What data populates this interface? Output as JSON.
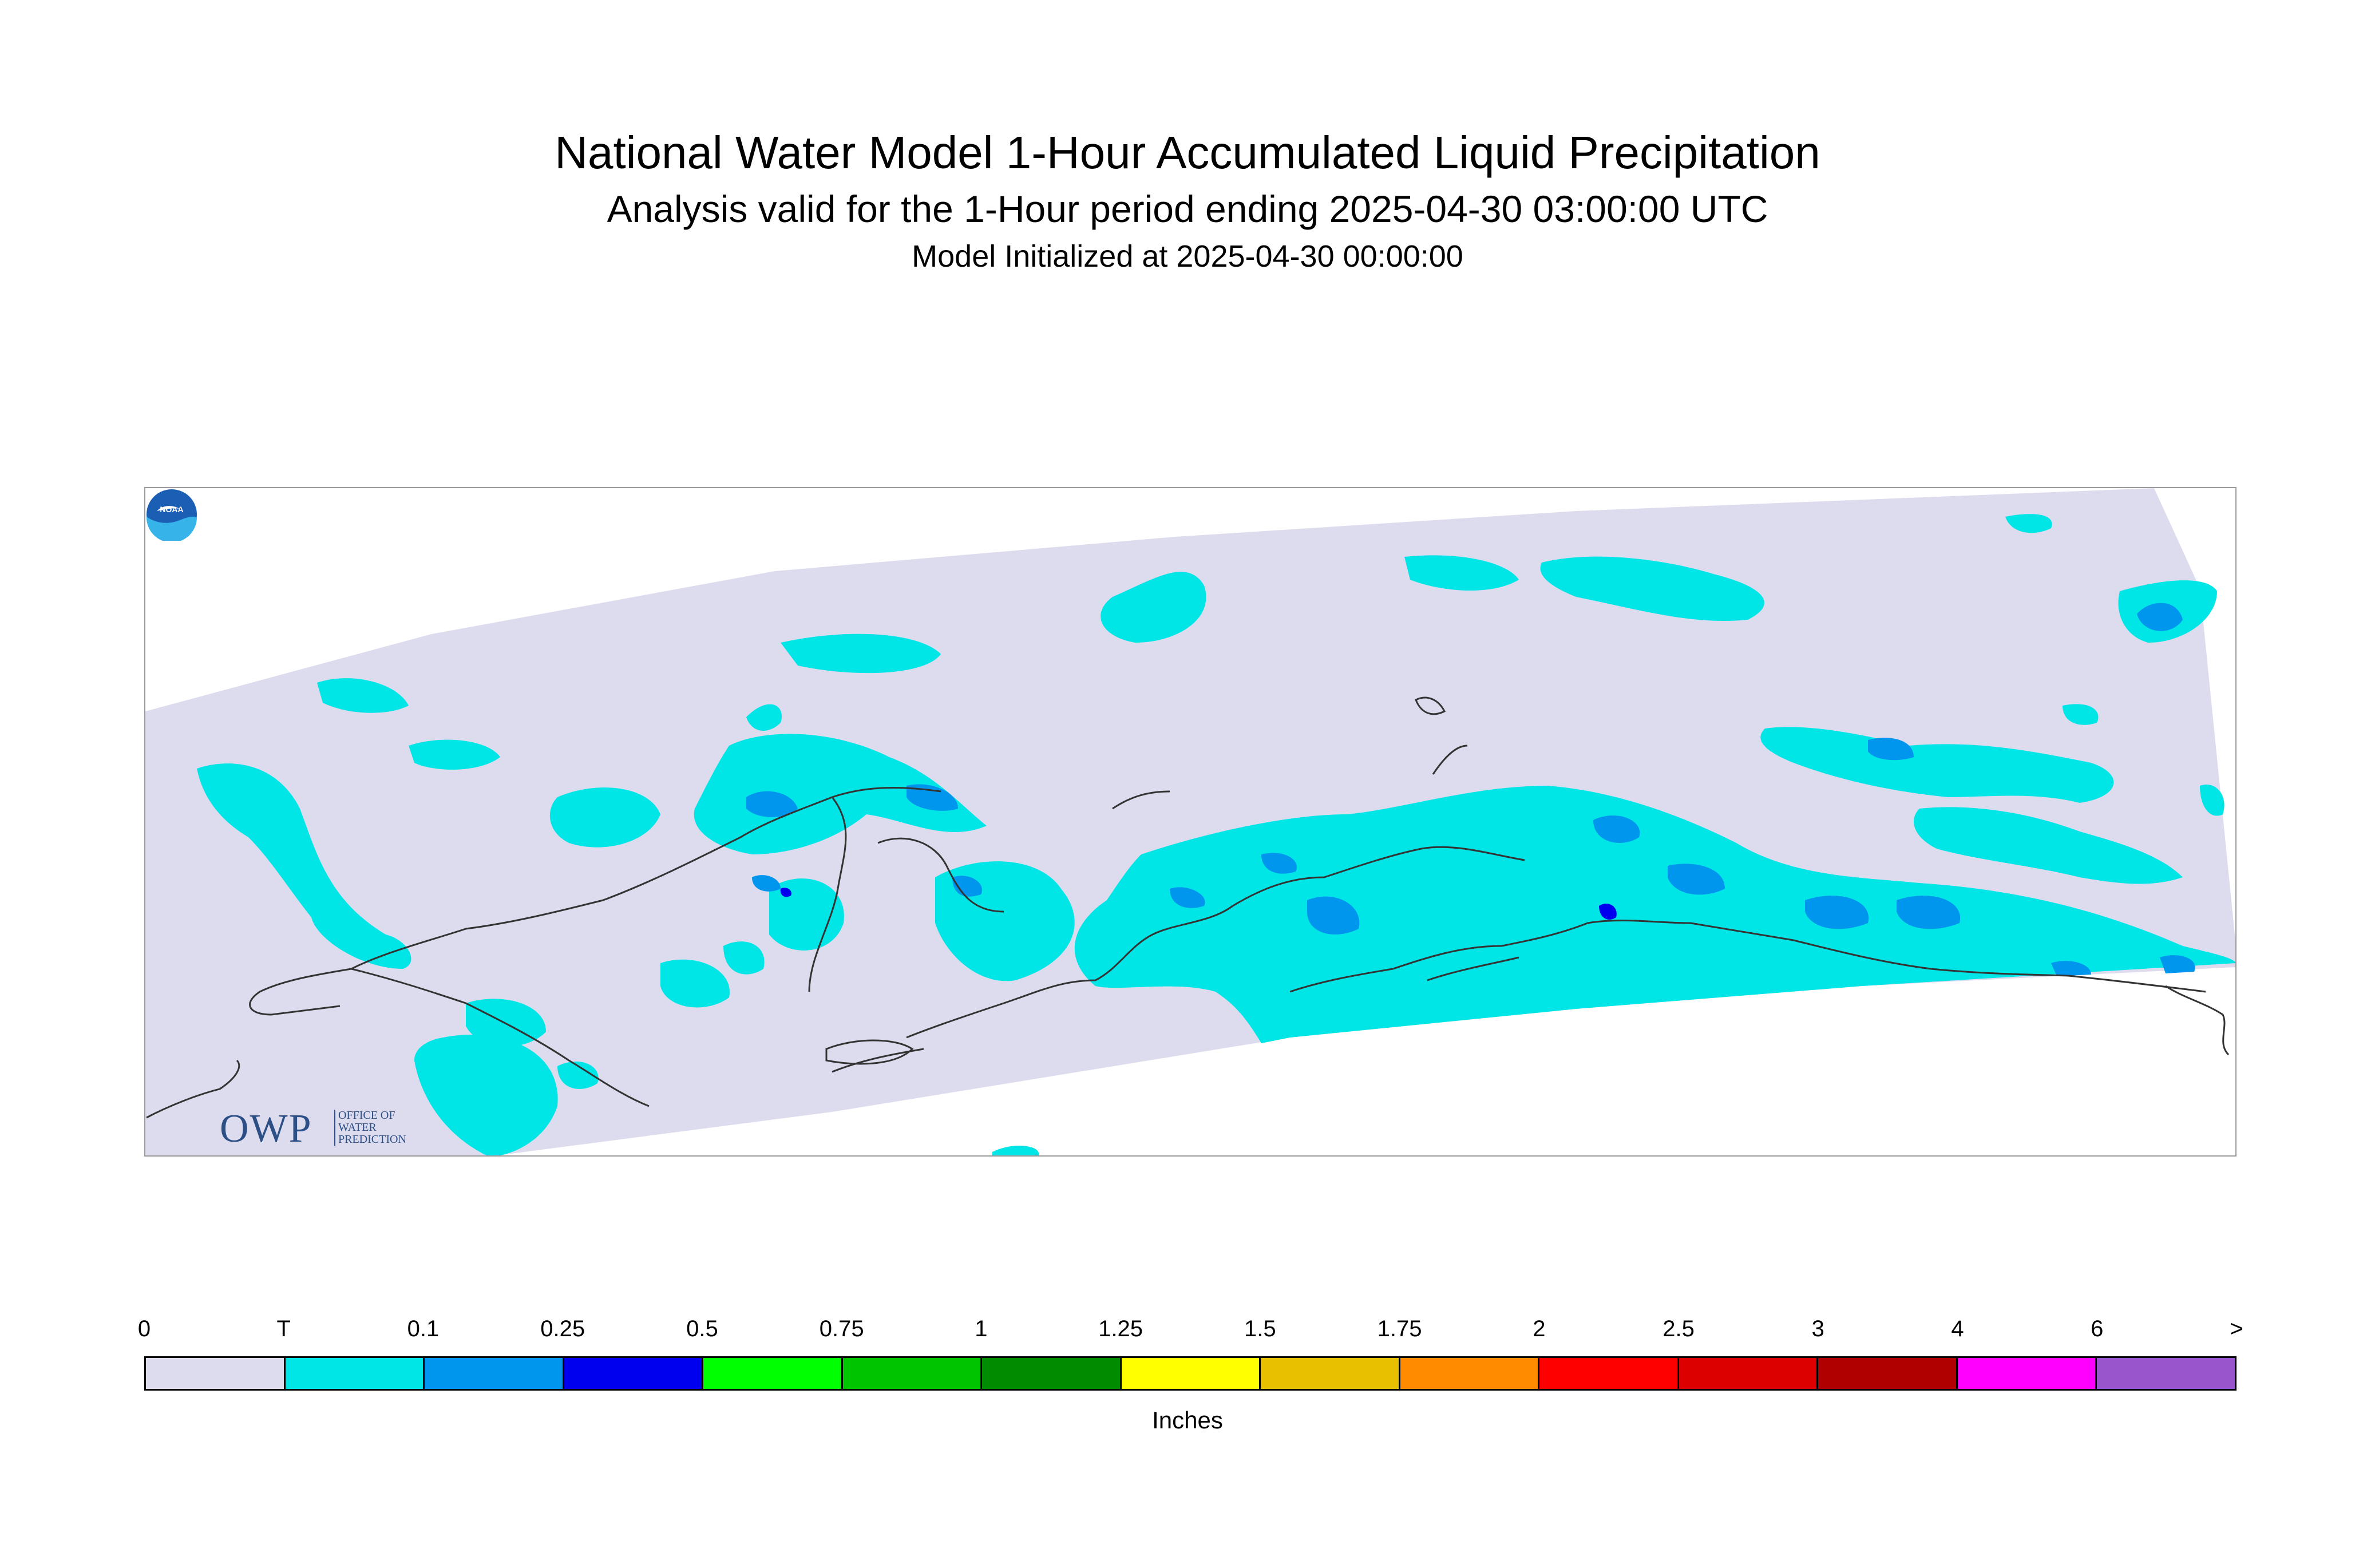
{
  "title": "National Water Model 1-Hour Accumulated Liquid Precipitation",
  "subtitle": "Analysis valid for the 1-Hour period ending 2025-04-30 03:00:00 UTC",
  "init_line": "Model Initialized at 2025-04-30 00:00:00",
  "logos": {
    "owp_main": "OWP",
    "owp_sub": [
      "OFFICE OF",
      "WATER",
      "PREDICTION"
    ],
    "noaa": "NOAA"
  },
  "colors": {
    "domain_zero": "#dcdcee",
    "trace": "#00e5e5",
    "p01": "#0096ee",
    "p025": "#0000ee",
    "coastline": "#333333"
  },
  "legend": {
    "units": "Inches",
    "tick_labels": [
      "0",
      "T",
      "0.1",
      "0.25",
      "0.5",
      "0.75",
      "1",
      "1.25",
      "1.5",
      "1.75",
      "2",
      "2.5",
      "3",
      "4",
      "6",
      ">"
    ],
    "bin_colors": [
      "#dcdcee",
      "#00e5e5",
      "#0096ee",
      "#0000ee",
      "#00ff00",
      "#00c400",
      "#008b00",
      "#ffff00",
      "#e8c000",
      "#ff8c00",
      "#ff0000",
      "#dd0000",
      "#b00000",
      "#ff00ff",
      "#9955cc"
    ]
  }
}
